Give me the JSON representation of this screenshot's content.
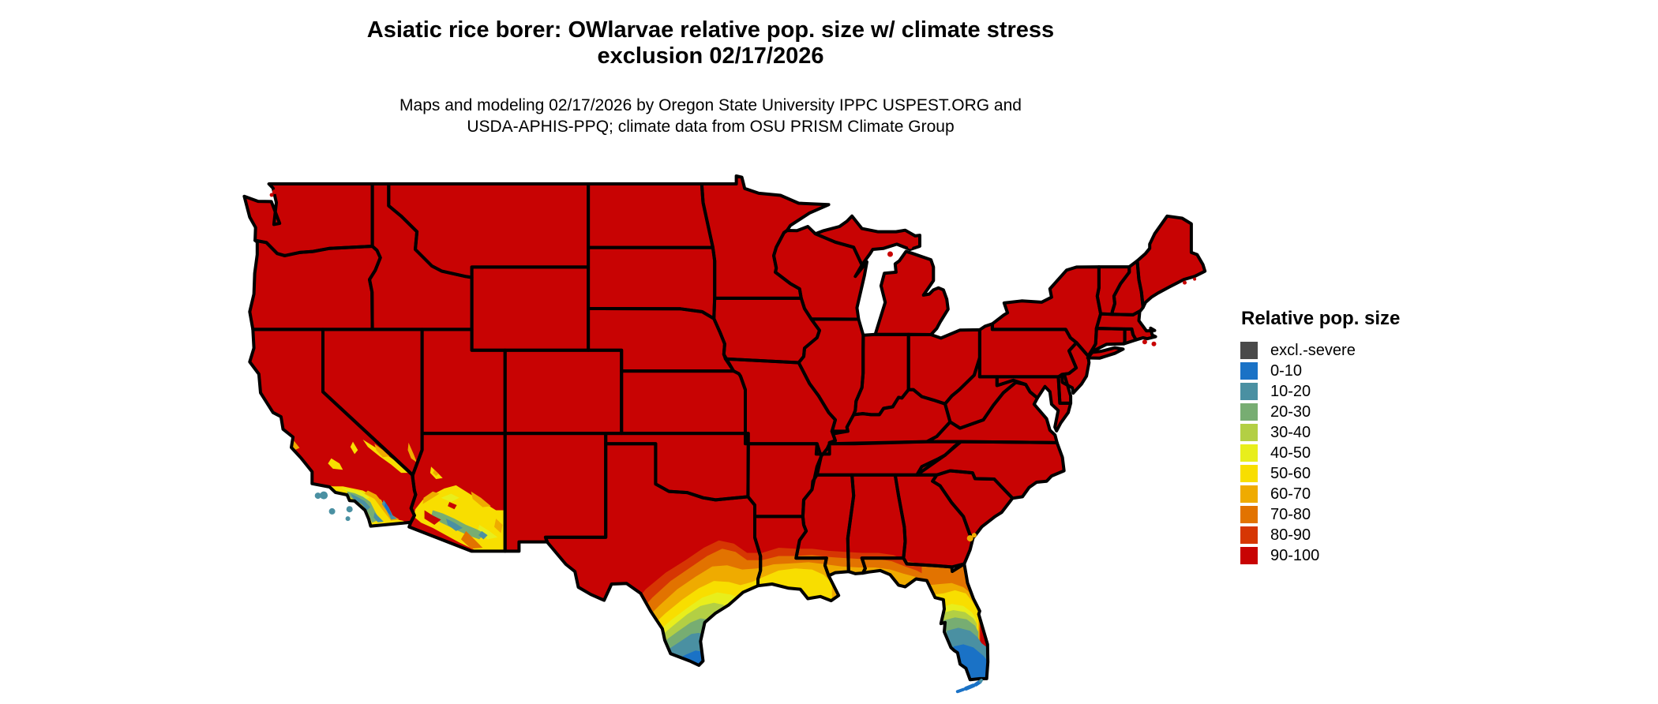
{
  "header": {
    "title_line1": "Asiatic rice borer: OWlarvae relative pop. size w/ climate stress",
    "title_line2": "exclusion 02/17/2026",
    "subtitle_line1": "Maps and modeling 02/17/2026 by Oregon State University IPPC USPEST.ORG and",
    "subtitle_line2": "USDA-APHIS-PPQ; climate data from OSU PRISM Climate Group"
  },
  "legend": {
    "title": "Relative pop. size",
    "items": [
      {
        "label": "excl.-severe",
        "color": "#4a4a4a"
      },
      {
        "label": "0-10",
        "color": "#1a72c6"
      },
      {
        "label": "10-20",
        "color": "#4a90a2"
      },
      {
        "label": "20-30",
        "color": "#77ad72"
      },
      {
        "label": "30-40",
        "color": "#b3cf44"
      },
      {
        "label": "40-50",
        "color": "#e8ee1c"
      },
      {
        "label": "50-60",
        "color": "#f8de00"
      },
      {
        "label": "60-70",
        "color": "#efab00"
      },
      {
        "label": "70-80",
        "color": "#e27300"
      },
      {
        "label": "80-90",
        "color": "#d63603"
      },
      {
        "label": "90-100",
        "color": "#c80303"
      }
    ]
  },
  "map": {
    "region": "Continental United States",
    "border_color": "#000000",
    "background_color": "#ffffff",
    "dominant_class": "90-100",
    "low_population_areas": [
      "southern Texas (Rio Grande Valley)",
      "central and southern Florida peninsula",
      "Gulf Coast fringe of Louisiana, Mississippi and Alabama",
      "coastal southern California and Salton Trough",
      "southern and central Arizona deserts",
      "Death Valley and southern Nevada"
    ]
  }
}
